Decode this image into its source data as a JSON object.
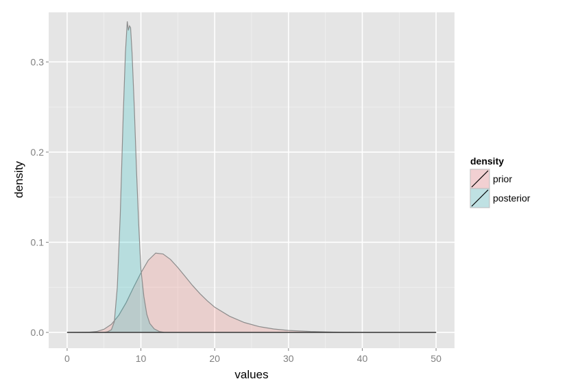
{
  "chart_data": {
    "type": "area",
    "xlabel": "values",
    "ylabel": "density",
    "xlim": [
      -2.5,
      52.5
    ],
    "ylim": [
      -0.0175,
      0.355
    ],
    "x_ticks": [
      0,
      10,
      20,
      30,
      40,
      50
    ],
    "y_ticks": [
      0.0,
      0.1,
      0.2,
      0.3
    ],
    "x_tick_labels": [
      "0",
      "10",
      "20",
      "30",
      "40",
      "50"
    ],
    "y_tick_labels": [
      "0.0",
      "0.1",
      "0.2",
      "0.3"
    ],
    "grid": true,
    "legend": {
      "title": "density",
      "position": "right",
      "entries": [
        "prior",
        "posterior"
      ]
    },
    "series": [
      {
        "name": "prior",
        "fill": "#F8766D",
        "fill_opacity": 0.2,
        "line_color": "#8c8c8c",
        "points": [
          [
            0,
            0
          ],
          [
            3,
            0.0003
          ],
          [
            4,
            0.001
          ],
          [
            5,
            0.0035
          ],
          [
            6,
            0.009
          ],
          [
            7,
            0.019
          ],
          [
            8,
            0.033
          ],
          [
            9,
            0.05
          ],
          [
            10,
            0.066
          ],
          [
            11,
            0.08
          ],
          [
            12,
            0.088
          ],
          [
            13,
            0.087
          ],
          [
            14,
            0.081
          ],
          [
            15,
            0.072
          ],
          [
            16,
            0.062
          ],
          [
            17,
            0.052
          ],
          [
            18,
            0.043
          ],
          [
            19,
            0.035
          ],
          [
            20,
            0.028
          ],
          [
            22,
            0.018
          ],
          [
            24,
            0.011
          ],
          [
            26,
            0.0065
          ],
          [
            28,
            0.0038
          ],
          [
            30,
            0.0022
          ],
          [
            33,
            0.001
          ],
          [
            36,
            0.0004
          ],
          [
            40,
            0.0001
          ],
          [
            45,
            0
          ],
          [
            50,
            0
          ]
        ]
      },
      {
        "name": "posterior",
        "fill": "#00BFC4",
        "fill_opacity": 0.2,
        "line_color": "#8c8c8c",
        "points": [
          [
            0,
            0
          ],
          [
            5,
            0
          ],
          [
            5.5,
            0.0008
          ],
          [
            6,
            0.003
          ],
          [
            6.4,
            0.012
          ],
          [
            6.8,
            0.05
          ],
          [
            7.2,
            0.13
          ],
          [
            7.6,
            0.24
          ],
          [
            7.9,
            0.31
          ],
          [
            8.15,
            0.345
          ],
          [
            8.3,
            0.335
          ],
          [
            8.45,
            0.34
          ],
          [
            8.6,
            0.338
          ],
          [
            8.8,
            0.31
          ],
          [
            9.1,
            0.25
          ],
          [
            9.4,
            0.18
          ],
          [
            9.7,
            0.12
          ],
          [
            10,
            0.07
          ],
          [
            10.4,
            0.04
          ],
          [
            10.8,
            0.02
          ],
          [
            11.2,
            0.01
          ],
          [
            11.8,
            0.004
          ],
          [
            12.5,
            0.001
          ],
          [
            13.2,
            0
          ],
          [
            50,
            0
          ]
        ]
      }
    ]
  }
}
